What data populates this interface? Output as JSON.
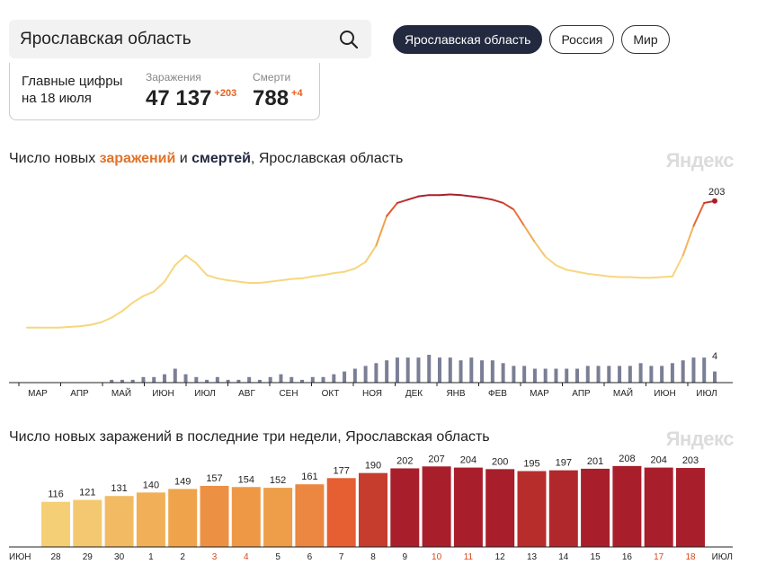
{
  "search": {
    "value": "Ярославская область"
  },
  "regions": {
    "active": "Ярославская область",
    "russia": "Россия",
    "world": "Мир"
  },
  "summary": {
    "label": "Главные цифры на 18 июля",
    "infections_caption": "Заражения",
    "infections_value": "47 137",
    "infections_delta": "+203",
    "deaths_caption": "Смерти",
    "deaths_value": "788",
    "deaths_delta": "+4"
  },
  "chart1": {
    "title_prefix": "Число новых ",
    "title_infections": "заражений",
    "title_and": " и ",
    "title_deaths": "смертей",
    "title_suffix": ", Ярославская область",
    "watermark": "Яндекс",
    "end_label_infections": "203",
    "end_label_deaths": "4",
    "months": [
      "МАР",
      "АПР",
      "МАЙ",
      "ИЮН",
      "ИЮЛ",
      "АВГ",
      "СЕН",
      "ОКТ",
      "НОЯ",
      "ДЕК",
      "ЯНВ",
      "ФЕВ",
      "МАР",
      "АПР",
      "МАЙ",
      "ИЮН",
      "ИЮЛ"
    ]
  },
  "chart2": {
    "title": "Число новых заражений в последние три недели, Ярославская область",
    "watermark": "Яндекс",
    "left_month": "ИЮН",
    "right_month": "ИЮЛ"
  },
  "colors": {
    "dark_navy": "#232a3f",
    "orange": "#e0732a",
    "weekend_red": "#d4481f"
  },
  "chart_data": [
    {
      "type": "line",
      "x_start": "2020-03",
      "x_end": "2021-07-18",
      "series": [
        {
          "name": "заражений",
          "values": [
            10,
            10,
            10,
            10,
            11,
            12,
            14,
            18,
            25,
            35,
            48,
            58,
            65,
            80,
            105,
            120,
            108,
            90,
            85,
            82,
            80,
            78,
            78,
            80,
            82,
            84,
            85,
            88,
            90,
            93,
            95,
            100,
            110,
            135,
            180,
            200,
            205,
            210,
            212,
            212,
            213,
            212,
            210,
            208,
            205,
            200,
            190,
            165,
            140,
            118,
            105,
            98,
            95,
            92,
            90,
            88,
            87,
            87,
            86,
            86,
            87,
            88,
            120,
            165,
            200,
            203
          ]
        },
        {
          "name": "смертей",
          "values": [
            0,
            0,
            0,
            0,
            0,
            0,
            0,
            0,
            1,
            1,
            1,
            2,
            2,
            3,
            5,
            3,
            2,
            1,
            2,
            1,
            1,
            2,
            1,
            2,
            3,
            2,
            1,
            2,
            2,
            3,
            4,
            5,
            6,
            7,
            8,
            9,
            9,
            9,
            10,
            9,
            9,
            8,
            9,
            8,
            8,
            7,
            6,
            6,
            5,
            5,
            5,
            5,
            5,
            6,
            6,
            6,
            6,
            6,
            7,
            6,
            6,
            7,
            8,
            9,
            9,
            4
          ]
        }
      ]
    },
    {
      "type": "bar",
      "categories": [
        "28",
        "29",
        "30",
        "1",
        "2",
        "3",
        "4",
        "5",
        "6",
        "7",
        "8",
        "9",
        "10",
        "11",
        "12",
        "13",
        "14",
        "15",
        "16",
        "17",
        "18"
      ],
      "values": [
        116,
        121,
        131,
        140,
        149,
        157,
        154,
        152,
        161,
        177,
        190,
        202,
        207,
        204,
        200,
        195,
        197,
        201,
        208,
        204,
        203
      ],
      "weekend_indices": [
        5,
        6,
        12,
        13,
        19,
        20
      ]
    }
  ]
}
